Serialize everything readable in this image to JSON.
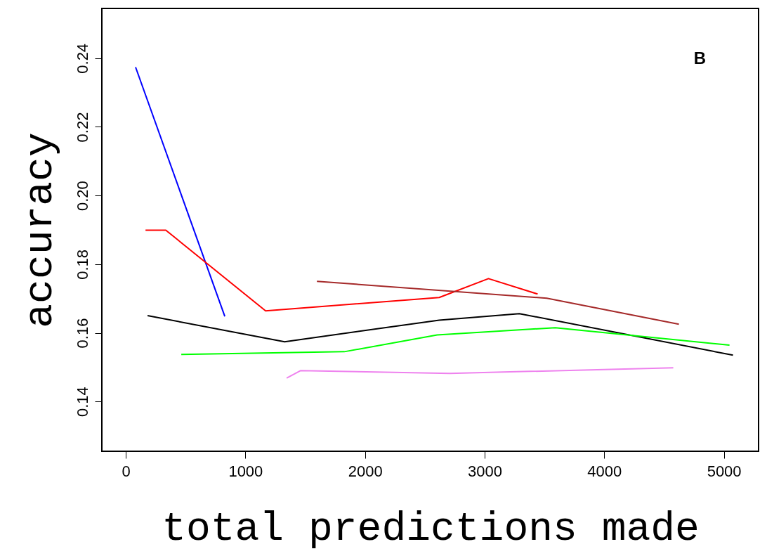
{
  "chart_data": {
    "type": "line",
    "xlabel": "total predictions made",
    "ylabel": "accuracy",
    "annotations": [
      "B"
    ],
    "xlim": [
      -200,
      5290
    ],
    "xticks": [
      0,
      1000,
      2000,
      3000,
      4000,
      5000
    ],
    "ylim": [
      0.1255,
      0.2545
    ],
    "yticks": [
      0.14,
      0.16,
      0.18,
      {
        "value": 0.2,
        "label": "0.20"
      },
      0.22,
      0.24
    ],
    "grid": false,
    "series": [
      {
        "color": "#0000ff",
        "x": [
          82,
          828
        ],
        "values": [
          0.2374,
          0.1648
        ]
      },
      {
        "color": "#ff0000",
        "x": [
          165,
          335,
          1169,
          2620,
          3032,
          3443
        ],
        "values": [
          0.1899,
          0.1899,
          0.1664,
          0.1703,
          0.1758,
          0.1713
        ]
      },
      {
        "color": "#a52a2a",
        "x": [
          1598,
          3519,
          4624
        ],
        "values": [
          0.175,
          0.1701,
          0.1625
        ]
      },
      {
        "color": "#000000",
        "x": [
          182,
          1328,
          2620,
          3290,
          5076
        ],
        "values": [
          0.165,
          0.1574,
          0.1637,
          0.1656,
          0.1535
        ]
      },
      {
        "color": "#00ff00",
        "x": [
          464,
          1827,
          2603,
          3590,
          5047
        ],
        "values": [
          0.1537,
          0.1545,
          0.1594,
          0.1615,
          0.1564
        ]
      },
      {
        "color": "#ee82ee",
        "x": [
          1345,
          1463,
          2709,
          4577
        ],
        "values": [
          0.1468,
          0.149,
          0.1482,
          0.1498
        ]
      }
    ]
  }
}
